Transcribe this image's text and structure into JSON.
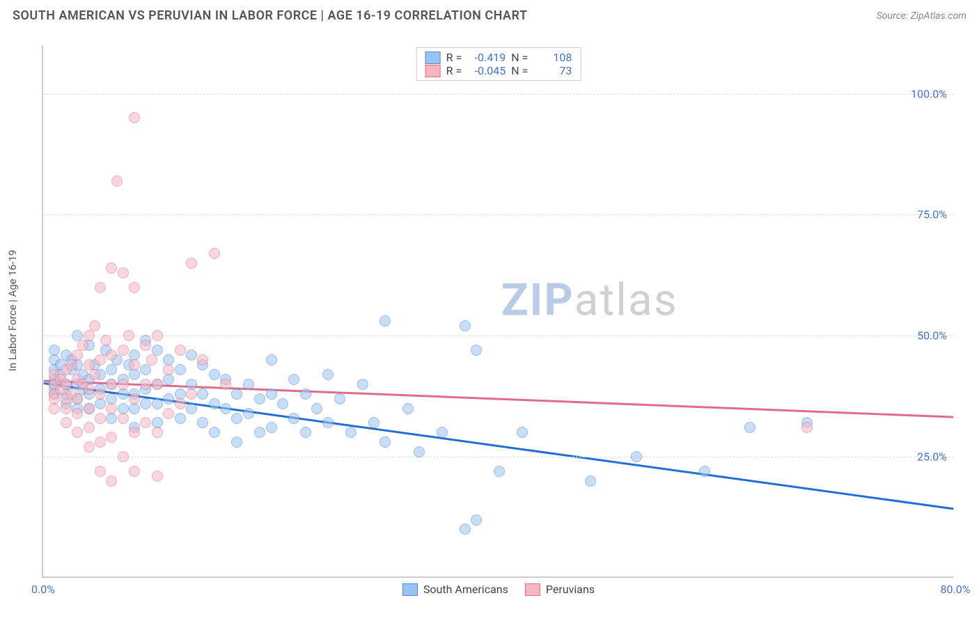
{
  "title": "SOUTH AMERICAN VS PERUVIAN IN LABOR FORCE | AGE 16-19 CORRELATION CHART",
  "source": "Source: ZipAtlas.com",
  "ylabel": "In Labor Force | Age 16-19",
  "watermark_prefix": "ZIP",
  "watermark_suffix": "atlas",
  "chart": {
    "type": "scatter",
    "xlim": [
      0,
      80
    ],
    "ylim": [
      0,
      110
    ],
    "xticks": [
      {
        "v": 0,
        "l": "0.0%"
      },
      {
        "v": 80,
        "l": "80.0%"
      }
    ],
    "yticks": [
      {
        "v": 25,
        "l": "25.0%"
      },
      {
        "v": 50,
        "l": "50.0%"
      },
      {
        "v": 75,
        "l": "75.0%"
      },
      {
        "v": 100,
        "l": "100.0%"
      }
    ],
    "grid_color": "#dddddd",
    "background": "#ffffff",
    "axis_color": "#cccccc",
    "tick_label_color": "#4472c4",
    "point_radius": 8,
    "point_opacity": 0.55,
    "point_stroke_width": 1.2,
    "series": [
      {
        "name": "South Americans",
        "color_fill": "#9cc3f0",
        "color_stroke": "#4f86d6",
        "trend_color": "#1f6fd6",
        "trend_width": 3,
        "R": "-0.419",
        "N": "108",
        "trend": {
          "y_at_x0": 40,
          "y_at_xmax": 14
        },
        "points": [
          [
            1,
            45
          ],
          [
            1,
            43
          ],
          [
            1,
            41
          ],
          [
            1,
            40
          ],
          [
            1,
            39
          ],
          [
            1,
            38
          ],
          [
            1,
            47
          ],
          [
            1.5,
            44
          ],
          [
            1.5,
            42
          ],
          [
            2,
            46
          ],
          [
            2,
            40
          ],
          [
            2,
            38
          ],
          [
            2,
            36
          ],
          [
            2.5,
            45
          ],
          [
            2.5,
            43
          ],
          [
            3,
            50
          ],
          [
            3,
            44
          ],
          [
            3,
            40
          ],
          [
            3,
            37
          ],
          [
            3,
            35
          ],
          [
            3.5,
            42
          ],
          [
            3.5,
            39
          ],
          [
            4,
            48
          ],
          [
            4,
            41
          ],
          [
            4,
            38
          ],
          [
            4,
            35
          ],
          [
            4.5,
            44
          ],
          [
            5,
            42
          ],
          [
            5,
            39
          ],
          [
            5,
            36
          ],
          [
            5.5,
            47
          ],
          [
            6,
            43
          ],
          [
            6,
            40
          ],
          [
            6,
            37
          ],
          [
            6,
            33
          ],
          [
            6.5,
            45
          ],
          [
            7,
            41
          ],
          [
            7,
            38
          ],
          [
            7,
            35
          ],
          [
            7.5,
            44
          ],
          [
            8,
            46
          ],
          [
            8,
            42
          ],
          [
            8,
            38
          ],
          [
            8,
            35
          ],
          [
            8,
            31
          ],
          [
            9,
            49
          ],
          [
            9,
            43
          ],
          [
            9,
            39
          ],
          [
            9,
            36
          ],
          [
            10,
            47
          ],
          [
            10,
            40
          ],
          [
            10,
            36
          ],
          [
            10,
            32
          ],
          [
            11,
            45
          ],
          [
            11,
            41
          ],
          [
            11,
            37
          ],
          [
            12,
            43
          ],
          [
            12,
            38
          ],
          [
            12,
            33
          ],
          [
            13,
            46
          ],
          [
            13,
            40
          ],
          [
            13,
            35
          ],
          [
            14,
            44
          ],
          [
            14,
            38
          ],
          [
            14,
            32
          ],
          [
            15,
            42
          ],
          [
            15,
            36
          ],
          [
            15,
            30
          ],
          [
            16,
            41
          ],
          [
            16,
            35
          ],
          [
            17,
            38
          ],
          [
            17,
            33
          ],
          [
            17,
            28
          ],
          [
            18,
            40
          ],
          [
            18,
            34
          ],
          [
            19,
            37
          ],
          [
            19,
            30
          ],
          [
            20,
            45
          ],
          [
            20,
            38
          ],
          [
            20,
            31
          ],
          [
            21,
            36
          ],
          [
            22,
            41
          ],
          [
            22,
            33
          ],
          [
            23,
            38
          ],
          [
            23,
            30
          ],
          [
            24,
            35
          ],
          [
            25,
            42
          ],
          [
            25,
            32
          ],
          [
            26,
            37
          ],
          [
            27,
            30
          ],
          [
            28,
            40
          ],
          [
            29,
            32
          ],
          [
            30,
            28
          ],
          [
            30,
            53
          ],
          [
            32,
            35
          ],
          [
            33,
            26
          ],
          [
            35,
            30
          ],
          [
            37,
            52
          ],
          [
            37,
            10
          ],
          [
            38,
            12
          ],
          [
            38,
            47
          ],
          [
            40,
            22
          ],
          [
            42,
            30
          ],
          [
            48,
            20
          ],
          [
            52,
            25
          ],
          [
            58,
            22
          ],
          [
            62,
            31
          ],
          [
            67,
            32
          ]
        ]
      },
      {
        "name": "Peruvians",
        "color_fill": "#f7b6c4",
        "color_stroke": "#e06b8b",
        "trend_color": "#e06b8b",
        "trend_width": 3,
        "R": "-0.045",
        "N": "73",
        "trend": {
          "y_at_x0": 40.5,
          "y_at_xmax": 33
        },
        "points": [
          [
            1,
            40
          ],
          [
            1,
            38
          ],
          [
            1,
            37
          ],
          [
            1,
            35
          ],
          [
            1,
            42
          ],
          [
            1.5,
            41
          ],
          [
            1.5,
            39
          ],
          [
            2,
            43
          ],
          [
            2,
            40
          ],
          [
            2,
            37
          ],
          [
            2,
            35
          ],
          [
            2,
            32
          ],
          [
            2.5,
            44
          ],
          [
            2.5,
            38
          ],
          [
            3,
            46
          ],
          [
            3,
            41
          ],
          [
            3,
            37
          ],
          [
            3,
            34
          ],
          [
            3,
            30
          ],
          [
            3.5,
            48
          ],
          [
            3.5,
            40
          ],
          [
            4,
            50
          ],
          [
            4,
            44
          ],
          [
            4,
            39
          ],
          [
            4,
            35
          ],
          [
            4,
            31
          ],
          [
            4,
            27
          ],
          [
            4.5,
            52
          ],
          [
            4.5,
            42
          ],
          [
            5,
            60
          ],
          [
            5,
            45
          ],
          [
            5,
            38
          ],
          [
            5,
            33
          ],
          [
            5,
            28
          ],
          [
            5,
            22
          ],
          [
            5.5,
            49
          ],
          [
            6,
            64
          ],
          [
            6,
            46
          ],
          [
            6,
            40
          ],
          [
            6,
            35
          ],
          [
            6,
            29
          ],
          [
            6,
            20
          ],
          [
            6.5,
            82
          ],
          [
            7,
            63
          ],
          [
            7,
            47
          ],
          [
            7,
            40
          ],
          [
            7,
            33
          ],
          [
            7,
            25
          ],
          [
            7.5,
            50
          ],
          [
            8,
            95
          ],
          [
            8,
            60
          ],
          [
            8,
            44
          ],
          [
            8,
            37
          ],
          [
            8,
            30
          ],
          [
            8,
            22
          ],
          [
            9,
            48
          ],
          [
            9,
            40
          ],
          [
            9,
            32
          ],
          [
            9.5,
            45
          ],
          [
            10,
            50
          ],
          [
            10,
            40
          ],
          [
            10,
            30
          ],
          [
            10,
            21
          ],
          [
            11,
            43
          ],
          [
            11,
            34
          ],
          [
            12,
            47
          ],
          [
            12,
            36
          ],
          [
            13,
            65
          ],
          [
            13,
            38
          ],
          [
            14,
            45
          ],
          [
            15,
            67
          ],
          [
            16,
            40
          ],
          [
            67,
            31
          ]
        ]
      }
    ]
  },
  "legend": {
    "s1": "South Americans",
    "s2": "Peruvians"
  },
  "stats_labels": {
    "R": "R =",
    "N": "N ="
  }
}
